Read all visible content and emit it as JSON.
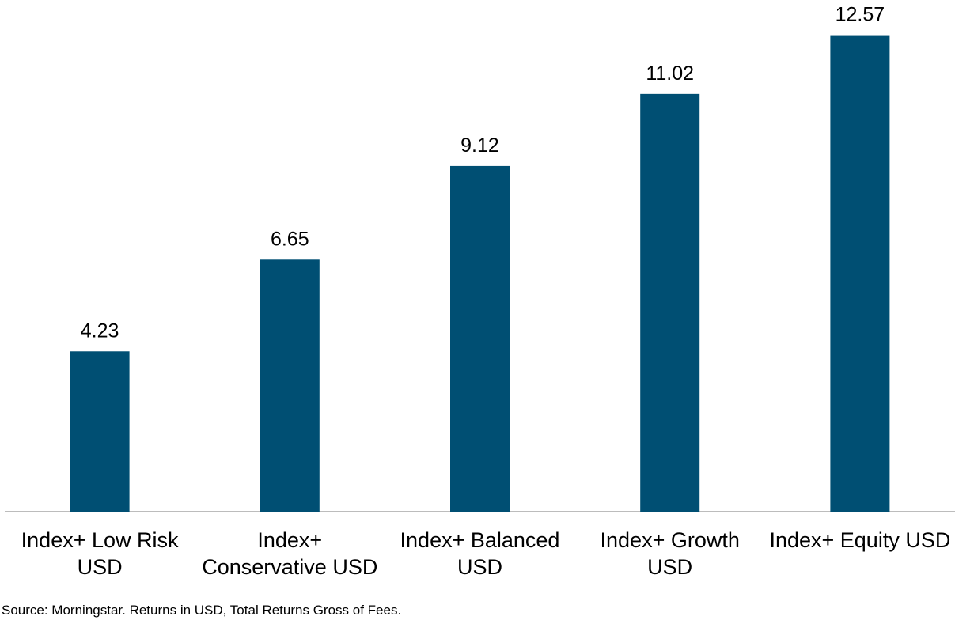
{
  "chart_data": {
    "type": "bar",
    "categories": [
      "Index+ Low Risk USD",
      "Index+ Conservative USD",
      "Index+ Balanced USD",
      "Index+ Growth USD",
      "Index+ Equity USD"
    ],
    "values": [
      4.23,
      6.65,
      9.12,
      11.02,
      12.57
    ],
    "color": "#004f73",
    "ylim": [
      0,
      13.5
    ],
    "source": "Source: Morningstar. Returns in USD, Total Returns Gross of Fees."
  }
}
